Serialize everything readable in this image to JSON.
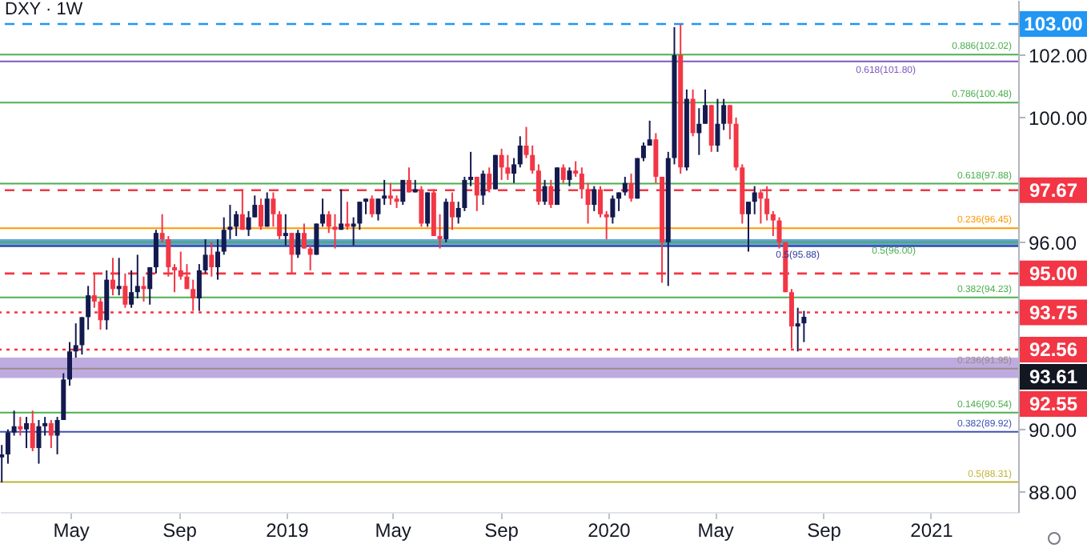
{
  "chart_data": {
    "type": "candlestick",
    "title": "DXY · 1W",
    "x": [
      "2018-02-12",
      "2018-02-19",
      "2018-02-26",
      "2018-03-05",
      "2018-03-12",
      "2018-03-19",
      "2018-03-26",
      "2018-04-02",
      "2018-04-09",
      "2018-04-16",
      "2018-04-23",
      "2018-04-30",
      "2018-05-07",
      "2018-05-14",
      "2018-05-21",
      "2018-05-28",
      "2018-06-04",
      "2018-06-11",
      "2018-06-18",
      "2018-06-25",
      "2018-07-02",
      "2018-07-09",
      "2018-07-16",
      "2018-07-23",
      "2018-07-30",
      "2018-08-06",
      "2018-08-13",
      "2018-08-20",
      "2018-08-27",
      "2018-09-03",
      "2018-09-10",
      "2018-09-17",
      "2018-09-24",
      "2018-10-01",
      "2018-10-08",
      "2018-10-15",
      "2018-10-22",
      "2018-10-29",
      "2018-11-05",
      "2018-11-12",
      "2018-11-19",
      "2018-11-26",
      "2018-12-03",
      "2018-12-10",
      "2018-12-17",
      "2018-12-24",
      "2018-12-31",
      "2019-01-07",
      "2019-01-14",
      "2019-01-21",
      "2019-01-28",
      "2019-02-04",
      "2019-02-11",
      "2019-02-18",
      "2019-02-25",
      "2019-03-04",
      "2019-03-11",
      "2019-03-18",
      "2019-03-25",
      "2019-04-01",
      "2019-04-08",
      "2019-04-15",
      "2019-04-22",
      "2019-04-29",
      "2019-05-06",
      "2019-05-13",
      "2019-05-20",
      "2019-05-27",
      "2019-06-03",
      "2019-06-10",
      "2019-06-17",
      "2019-06-24",
      "2019-07-01",
      "2019-07-08",
      "2019-07-15",
      "2019-07-22",
      "2019-07-29",
      "2019-08-05",
      "2019-08-12",
      "2019-08-19",
      "2019-08-26",
      "2019-09-02",
      "2019-09-09",
      "2019-09-16",
      "2019-09-23",
      "2019-09-30",
      "2019-10-07",
      "2019-10-14",
      "2019-10-21",
      "2019-10-28",
      "2019-11-04",
      "2019-11-11",
      "2019-11-18",
      "2019-11-25",
      "2019-12-02",
      "2019-12-09",
      "2019-12-16",
      "2019-12-23",
      "2019-12-30",
      "2020-01-06",
      "2020-01-13",
      "2020-01-20",
      "2020-01-27",
      "2020-02-03",
      "2020-02-10",
      "2020-02-17",
      "2020-02-24",
      "2020-03-02",
      "2020-03-09",
      "2020-03-16",
      "2020-03-23",
      "2020-03-30",
      "2020-04-06",
      "2020-04-13",
      "2020-04-20",
      "2020-04-27",
      "2020-05-04",
      "2020-05-11",
      "2020-05-18",
      "2020-05-25",
      "2020-06-01",
      "2020-06-08",
      "2020-06-15",
      "2020-06-22",
      "2020-06-29",
      "2020-07-06",
      "2020-07-13",
      "2020-07-20",
      "2020-07-27",
      "2020-08-03",
      "2020-08-10"
    ],
    "ohlc": [
      [
        89.1,
        89.5,
        88.3,
        89.2
      ],
      [
        89.2,
        90.0,
        88.9,
        89.9
      ],
      [
        89.9,
        90.6,
        89.8,
        90.1
      ],
      [
        90.1,
        90.4,
        89.8,
        90.0
      ],
      [
        90.0,
        90.4,
        89.4,
        90.2
      ],
      [
        90.2,
        90.6,
        89.3,
        89.4
      ],
      [
        89.4,
        90.3,
        88.9,
        90.1
      ],
      [
        90.1,
        90.4,
        89.8,
        90.2
      ],
      [
        90.2,
        90.3,
        89.4,
        89.8
      ],
      [
        89.8,
        90.4,
        89.2,
        90.3
      ],
      [
        90.3,
        91.8,
        90.3,
        91.6
      ],
      [
        91.6,
        92.8,
        91.4,
        92.5
      ],
      [
        92.5,
        93.4,
        92.3,
        92.7
      ],
      [
        92.7,
        93.6,
        92.4,
        93.6
      ],
      [
        93.6,
        94.6,
        93.2,
        94.3
      ],
      [
        94.3,
        95.0,
        93.9,
        94.1
      ],
      [
        94.1,
        94.2,
        93.2,
        93.5
      ],
      [
        93.5,
        95.1,
        93.2,
        94.8
      ],
      [
        94.8,
        95.5,
        94.3,
        94.5
      ],
      [
        94.5,
        95.5,
        94.3,
        94.6
      ],
      [
        94.6,
        95.0,
        93.9,
        94.0
      ],
      [
        94.0,
        95.1,
        93.9,
        94.4
      ],
      [
        94.4,
        95.6,
        94.2,
        94.6
      ],
      [
        94.6,
        94.9,
        94.1,
        94.5
      ],
      [
        94.5,
        95.2,
        94.0,
        95.2
      ],
      [
        95.2,
        96.4,
        95.0,
        96.3
      ],
      [
        96.3,
        96.9,
        96.0,
        96.1
      ],
      [
        96.1,
        96.2,
        94.9,
        95.2
      ],
      [
        95.2,
        95.3,
        94.4,
        95.1
      ],
      [
        95.1,
        95.7,
        94.8,
        94.9
      ],
      [
        94.9,
        95.3,
        94.5,
        94.5
      ],
      [
        94.5,
        94.8,
        93.8,
        94.2
      ],
      [
        94.2,
        95.3,
        93.8,
        95.1
      ],
      [
        95.1,
        96.1,
        95.0,
        95.6
      ],
      [
        95.6,
        96.0,
        94.9,
        95.2
      ],
      [
        95.2,
        96.1,
        94.8,
        95.7
      ],
      [
        95.7,
        96.8,
        95.6,
        96.4
      ],
      [
        96.4,
        97.2,
        96.1,
        96.5
      ],
      [
        96.5,
        97.0,
        96.2,
        96.9
      ],
      [
        96.9,
        97.7,
        96.4,
        96.4
      ],
      [
        96.4,
        97.0,
        96.2,
        96.8
      ],
      [
        96.8,
        97.5,
        96.8,
        97.2
      ],
      [
        97.2,
        97.4,
        96.4,
        96.5
      ],
      [
        96.5,
        97.6,
        96.5,
        97.4
      ],
      [
        97.4,
        97.6,
        96.5,
        96.9
      ],
      [
        96.9,
        97.0,
        96.1,
        96.2
      ],
      [
        96.2,
        96.9,
        95.9,
        96.3
      ],
      [
        96.3,
        96.3,
        95.0,
        95.6
      ],
      [
        95.6,
        96.4,
        95.5,
        96.3
      ],
      [
        96.3,
        96.6,
        95.8,
        95.8
      ],
      [
        95.8,
        95.9,
        95.1,
        95.6
      ],
      [
        95.6,
        96.6,
        95.6,
        96.6
      ],
      [
        96.6,
        97.4,
        96.5,
        96.9
      ],
      [
        96.9,
        97.0,
        96.3,
        96.5
      ],
      [
        96.5,
        96.9,
        95.8,
        96.4
      ],
      [
        96.4,
        97.7,
        96.4,
        96.6
      ],
      [
        96.6,
        97.3,
        96.4,
        96.5
      ],
      [
        96.5,
        96.8,
        95.9,
        96.6
      ],
      [
        96.6,
        97.3,
        96.4,
        97.3
      ],
      [
        97.3,
        97.4,
        96.9,
        97.4
      ],
      [
        97.4,
        97.5,
        96.8,
        96.9
      ],
      [
        96.9,
        97.4,
        96.7,
        97.4
      ],
      [
        97.4,
        98.0,
        97.2,
        97.5
      ],
      [
        97.5,
        97.9,
        97.2,
        97.4
      ],
      [
        97.4,
        97.5,
        97.1,
        97.3
      ],
      [
        97.3,
        98.0,
        97.2,
        98.0
      ],
      [
        98.0,
        98.4,
        97.6,
        97.6
      ],
      [
        97.6,
        98.0,
        97.6,
        97.7
      ],
      [
        97.7,
        97.8,
        96.5,
        96.6
      ],
      [
        96.6,
        97.6,
        96.5,
        97.6
      ],
      [
        97.6,
        97.7,
        96.2,
        96.2
      ],
      [
        96.2,
        96.9,
        95.8,
        96.1
      ],
      [
        96.1,
        97.4,
        96.0,
        97.3
      ],
      [
        97.3,
        97.6,
        96.4,
        96.8
      ],
      [
        96.8,
        97.3,
        96.6,
        97.1
      ],
      [
        97.1,
        98.1,
        97.0,
        98.0
      ],
      [
        98.0,
        98.9,
        97.8,
        98.1
      ],
      [
        98.1,
        98.1,
        97.0,
        97.5
      ],
      [
        97.5,
        98.3,
        97.2,
        98.2
      ],
      [
        98.2,
        98.4,
        97.6,
        97.7
      ],
      [
        97.7,
        98.8,
        97.7,
        98.8
      ],
      [
        98.8,
        99.0,
        98.0,
        98.4
      ],
      [
        98.4,
        98.8,
        98.0,
        98.2
      ],
      [
        98.2,
        98.7,
        97.9,
        98.5
      ],
      [
        98.5,
        99.4,
        98.4,
        99.1
      ],
      [
        99.1,
        99.7,
        98.7,
        98.8
      ],
      [
        98.8,
        99.1,
        98.2,
        98.3
      ],
      [
        98.3,
        98.5,
        97.2,
        97.3
      ],
      [
        97.3,
        98.0,
        97.2,
        97.8
      ],
      [
        97.8,
        98.0,
        97.1,
        97.2
      ],
      [
        97.2,
        98.4,
        97.2,
        98.4
      ],
      [
        98.4,
        98.5,
        97.9,
        98.0
      ],
      [
        98.0,
        98.4,
        97.8,
        98.3
      ],
      [
        98.3,
        98.6,
        98.1,
        98.2
      ],
      [
        98.2,
        98.4,
        97.4,
        97.7
      ],
      [
        97.7,
        97.9,
        96.6,
        97.2
      ],
      [
        97.2,
        97.8,
        97.0,
        97.7
      ],
      [
        97.7,
        97.8,
        96.8,
        96.9
      ],
      [
        96.9,
        97.0,
        96.1,
        96.8
      ],
      [
        96.8,
        97.5,
        96.6,
        97.4
      ],
      [
        97.4,
        97.6,
        97.0,
        97.6
      ],
      [
        97.6,
        98.1,
        97.5,
        97.9
      ],
      [
        97.9,
        98.2,
        97.3,
        97.4
      ],
      [
        97.4,
        98.7,
        97.4,
        98.7
      ],
      [
        98.7,
        99.2,
        98.6,
        99.1
      ],
      [
        99.1,
        99.9,
        99.1,
        99.3
      ],
      [
        99.3,
        99.5,
        97.9,
        98.1
      ],
      [
        98.1,
        98.1,
        94.7,
        96.0
      ],
      [
        96.0,
        98.9,
        94.6,
        98.7
      ],
      [
        98.7,
        102.9,
        98.5,
        102.0
      ],
      [
        102.0,
        103.0,
        98.2,
        98.4
      ],
      [
        98.4,
        100.9,
        98.3,
        100.6
      ],
      [
        100.6,
        100.9,
        99.4,
        99.5
      ],
      [
        99.5,
        100.3,
        98.8,
        99.8
      ],
      [
        99.8,
        100.9,
        99.8,
        100.4
      ],
      [
        100.4,
        100.4,
        98.9,
        99.1
      ],
      [
        99.1,
        100.6,
        98.9,
        99.8
      ],
      [
        99.8,
        100.6,
        99.6,
        100.4
      ],
      [
        100.4,
        100.4,
        99.3,
        99.8
      ],
      [
        99.8,
        100.0,
        98.3,
        98.4
      ],
      [
        98.4,
        98.5,
        96.6,
        96.9
      ],
      [
        96.9,
        97.3,
        95.7,
        97.3
      ],
      [
        97.3,
        97.8,
        96.9,
        97.6
      ],
      [
        97.6,
        97.7,
        96.6,
        97.4
      ],
      [
        97.4,
        97.8,
        96.7,
        96.9
      ],
      [
        96.9,
        97.0,
        96.2,
        96.7
      ],
      [
        96.7,
        96.8,
        95.8,
        96.0
      ],
      [
        96.0,
        96.0,
        94.4,
        94.4
      ],
      [
        94.4,
        94.5,
        92.6,
        93.3
      ],
      [
        93.3,
        93.9,
        92.5,
        93.4
      ],
      [
        93.4,
        93.8,
        92.8,
        93.61
      ]
    ],
    "colors": [
      "#131a4f",
      "#131a4f",
      "#131a4f",
      "#f23645",
      "#131a4f",
      "#f23645",
      "#131a4f",
      "#131a4f",
      "#f23645",
      "#131a4f",
      "#131a4f",
      "#131a4f",
      "#131a4f",
      "#131a4f",
      "#131a4f",
      "#f23645",
      "#f23645",
      "#131a4f",
      "#f23645",
      "#131a4f",
      "#f23645",
      "#131a4f",
      "#131a4f",
      "#f23645",
      "#131a4f",
      "#131a4f",
      "#f23645",
      "#f23645",
      "#f23645",
      "#f23645",
      "#f23645",
      "#f23645",
      "#131a4f",
      "#131a4f",
      "#f23645",
      "#131a4f",
      "#131a4f",
      "#131a4f",
      "#131a4f",
      "#f23645",
      "#131a4f",
      "#131a4f",
      "#f23645",
      "#131a4f",
      "#f23645",
      "#f23645",
      "#131a4f",
      "#f23645",
      "#131a4f",
      "#f23645",
      "#f23645",
      "#131a4f",
      "#131a4f",
      "#f23645",
      "#f23645",
      "#131a4f",
      "#f23645",
      "#131a4f",
      "#131a4f",
      "#131a4f",
      "#f23645",
      "#131a4f",
      "#131a4f",
      "#f23645",
      "#f23645",
      "#131a4f",
      "#f23645",
      "#131a4f",
      "#f23645",
      "#131a4f",
      "#f23645",
      "#f23645",
      "#131a4f",
      "#f23645",
      "#131a4f",
      "#131a4f",
      "#131a4f",
      "#f23645",
      "#131a4f",
      "#f23645",
      "#131a4f",
      "#f23645",
      "#f23645",
      "#131a4f",
      "#131a4f",
      "#f23645",
      "#f23645",
      "#f23645",
      "#131a4f",
      "#f23645",
      "#131a4f",
      "#f23645",
      "#131a4f",
      "#f23645",
      "#f23645",
      "#f23645",
      "#131a4f",
      "#f23645",
      "#f23645",
      "#131a4f",
      "#131a4f",
      "#131a4f",
      "#f23645",
      "#131a4f",
      "#131a4f",
      "#131a4f",
      "#f23645",
      "#f23645",
      "#131a4f",
      "#131a4f",
      "#f23645",
      "#131a4f",
      "#f23645",
      "#131a4f",
      "#131a4f",
      "#f23645",
      "#131a4f",
      "#131a4f",
      "#f23645",
      "#f23645",
      "#f23645",
      "#131a4f",
      "#131a4f",
      "#f23645",
      "#f23645",
      "#f23645",
      "#f23645",
      "#f23645",
      "#f23645",
      "#131a4f",
      "#131a4f"
    ],
    "xlim": [
      "2018-02-10",
      "2021-04-10"
    ],
    "xticks": [
      {
        "value": "2018-05-01",
        "label": "May"
      },
      {
        "value": "2018-09-01",
        "label": "Sep"
      },
      {
        "value": "2019-01-01",
        "label": "2019"
      },
      {
        "value": "2019-05-01",
        "label": "May"
      },
      {
        "value": "2019-09-01",
        "label": "Sep"
      },
      {
        "value": "2020-01-01",
        "label": "2020"
      },
      {
        "value": "2020-05-01",
        "label": "May"
      },
      {
        "value": "2020-09-01",
        "label": "Sep"
      },
      {
        "value": "2021-01-01",
        "label": "2021"
      }
    ],
    "ylim": [
      87.35,
      103.77
    ],
    "yticks": [
      {
        "value": 88,
        "label": "88.00"
      },
      {
        "value": 90,
        "label": "90.00"
      },
      {
        "value": 96,
        "label": "96.00"
      },
      {
        "value": 100,
        "label": "100.00"
      },
      {
        "value": 102,
        "label": "102.00"
      }
    ],
    "bands": [
      {
        "axis": "y",
        "from": 95.85,
        "to": 96.1,
        "color": "#4a90d9"
      },
      {
        "axis": "y",
        "from": 91.65,
        "to": 92.3,
        "color": "#b39ddb"
      }
    ],
    "ref_lines": [
      {
        "axis": "y",
        "value": 103,
        "label": "103.00",
        "color": "#2196f3",
        "line_style": "dashed"
      },
      {
        "axis": "y",
        "value": 102.02,
        "label": "0.886(102.02)",
        "color": "#4caf50",
        "line_style": "solid"
      },
      {
        "axis": "y",
        "value": 101.8,
        "label": "0.618(101.80)",
        "color": "#7e57c2",
        "line_style": "solid"
      },
      {
        "axis": "y",
        "value": 100.48,
        "label": "0.786(100.48)",
        "color": "#4caf50",
        "line_style": "solid"
      },
      {
        "axis": "y",
        "value": 97.88,
        "label": "0.618(97.88)",
        "color": "#4caf50",
        "line_style": "solid"
      },
      {
        "axis": "y",
        "value": 97.67,
        "label": "97.67",
        "color": "#f23645",
        "line_style": "dashed"
      },
      {
        "axis": "y",
        "value": 96.45,
        "label": "0.236(96.45)",
        "color": "#ff9800",
        "line_style": "solid"
      },
      {
        "axis": "y",
        "value": 96.0,
        "label": "0.5(96.00)",
        "color": "#4caf50",
        "line_style": "solid"
      },
      {
        "axis": "y",
        "value": 95.88,
        "label": "0.5(95.88)",
        "color": "#303f9f",
        "line_style": "solid"
      },
      {
        "axis": "y",
        "value": 95.0,
        "label": "95.00",
        "color": "#f23645",
        "line_style": "dashed"
      },
      {
        "axis": "y",
        "value": 94.23,
        "label": "0.382(94.23)",
        "color": "#4caf50",
        "line_style": "solid"
      },
      {
        "axis": "y",
        "value": 93.75,
        "label": "93.75",
        "color": "#f23645",
        "line_style": "dotted"
      },
      {
        "axis": "y",
        "value": 92.56,
        "label": "92.56",
        "color": "#f23645",
        "line_style": "dotted"
      },
      {
        "axis": "y",
        "value": 91.95,
        "label": "0.236(91.95)",
        "color": "#9e8a8a",
        "line_style": "solid"
      },
      {
        "axis": "y",
        "value": 90.54,
        "label": "0.146(90.54)",
        "color": "#4caf50",
        "line_style": "solid"
      },
      {
        "axis": "y",
        "value": 89.92,
        "label": "0.382(89.92)",
        "color": "#3f51b5",
        "line_style": "solid"
      },
      {
        "axis": "y",
        "value": 88.31,
        "label": "0.5(88.31)",
        "color": "#c0b33a",
        "line_style": "solid"
      }
    ],
    "annotations": [
      "93.61",
      "92.55"
    ]
  }
}
